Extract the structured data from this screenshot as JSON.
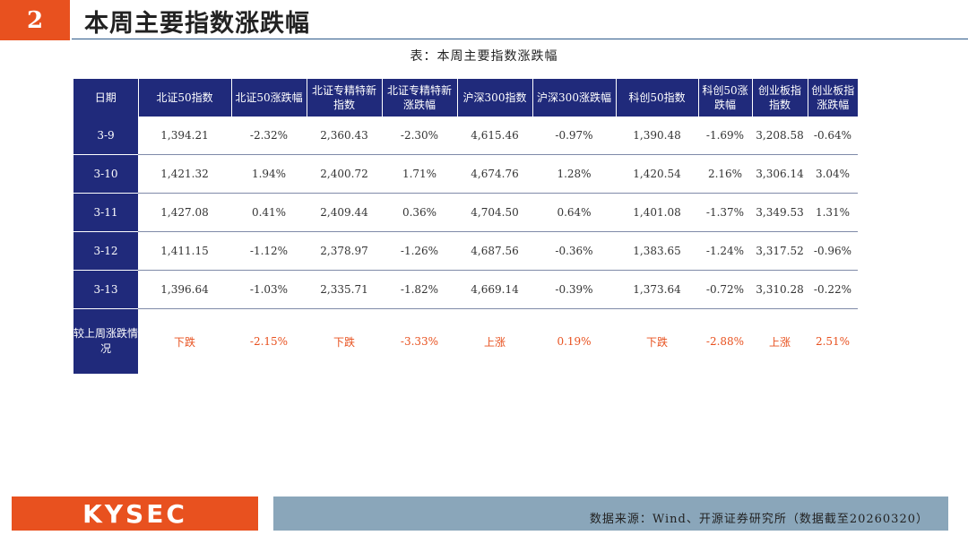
{
  "header": {
    "section_number": "2",
    "title": "本周主要指数涨跌幅"
  },
  "table": {
    "caption": "表：本周主要指数涨跌幅",
    "columns": [
      "日期",
      "北证50指数",
      "北证50涨跌幅",
      "北证专精特新指数",
      "北证专精特新涨跌幅",
      "沪深300指数",
      "沪深300涨跌幅",
      "科创50指数",
      "科创50涨跌幅",
      "创业板指指数",
      "创业板指涨跌幅"
    ],
    "rows": [
      [
        "3-9",
        "1,394.21",
        "-2.32%",
        "2,360.43",
        "-2.30%",
        "4,615.46",
        "-0.97%",
        "1,390.48",
        "-1.69%",
        "3,208.58",
        "-0.64%"
      ],
      [
        "3-10",
        "1,421.32",
        "1.94%",
        "2,400.72",
        "1.71%",
        "4,674.76",
        "1.28%",
        "1,420.54",
        "2.16%",
        "3,306.14",
        "3.04%"
      ],
      [
        "3-11",
        "1,427.08",
        "0.41%",
        "2,409.44",
        "0.36%",
        "4,704.50",
        "0.64%",
        "1,401.08",
        "-1.37%",
        "3,349.53",
        "1.31%"
      ],
      [
        "3-12",
        "1,411.15",
        "-1.12%",
        "2,378.97",
        "-1.26%",
        "4,687.56",
        "-0.36%",
        "1,383.65",
        "-1.24%",
        "3,317.52",
        "-0.96%"
      ],
      [
        "3-13",
        "1,396.64",
        "-1.03%",
        "2,335.71",
        "-1.82%",
        "4,669.14",
        "-0.39%",
        "1,373.64",
        "-0.72%",
        "3,310.28",
        "-0.22%"
      ]
    ],
    "summary": [
      "较上周涨跌情况",
      "下跌",
      "-2.15%",
      "下跌",
      "-3.33%",
      "上涨",
      "0.19%",
      "下跌",
      "-2.88%",
      "上涨",
      "2.51%"
    ]
  },
  "footer": {
    "logo_text": "KYSEC",
    "source": "数据来源：Wind、开源证券研究所（数据截至20260320）"
  },
  "colors": {
    "accent": "#e8511f",
    "header_navy": "#202a7b",
    "footer_bar": "#8aa6ba"
  }
}
